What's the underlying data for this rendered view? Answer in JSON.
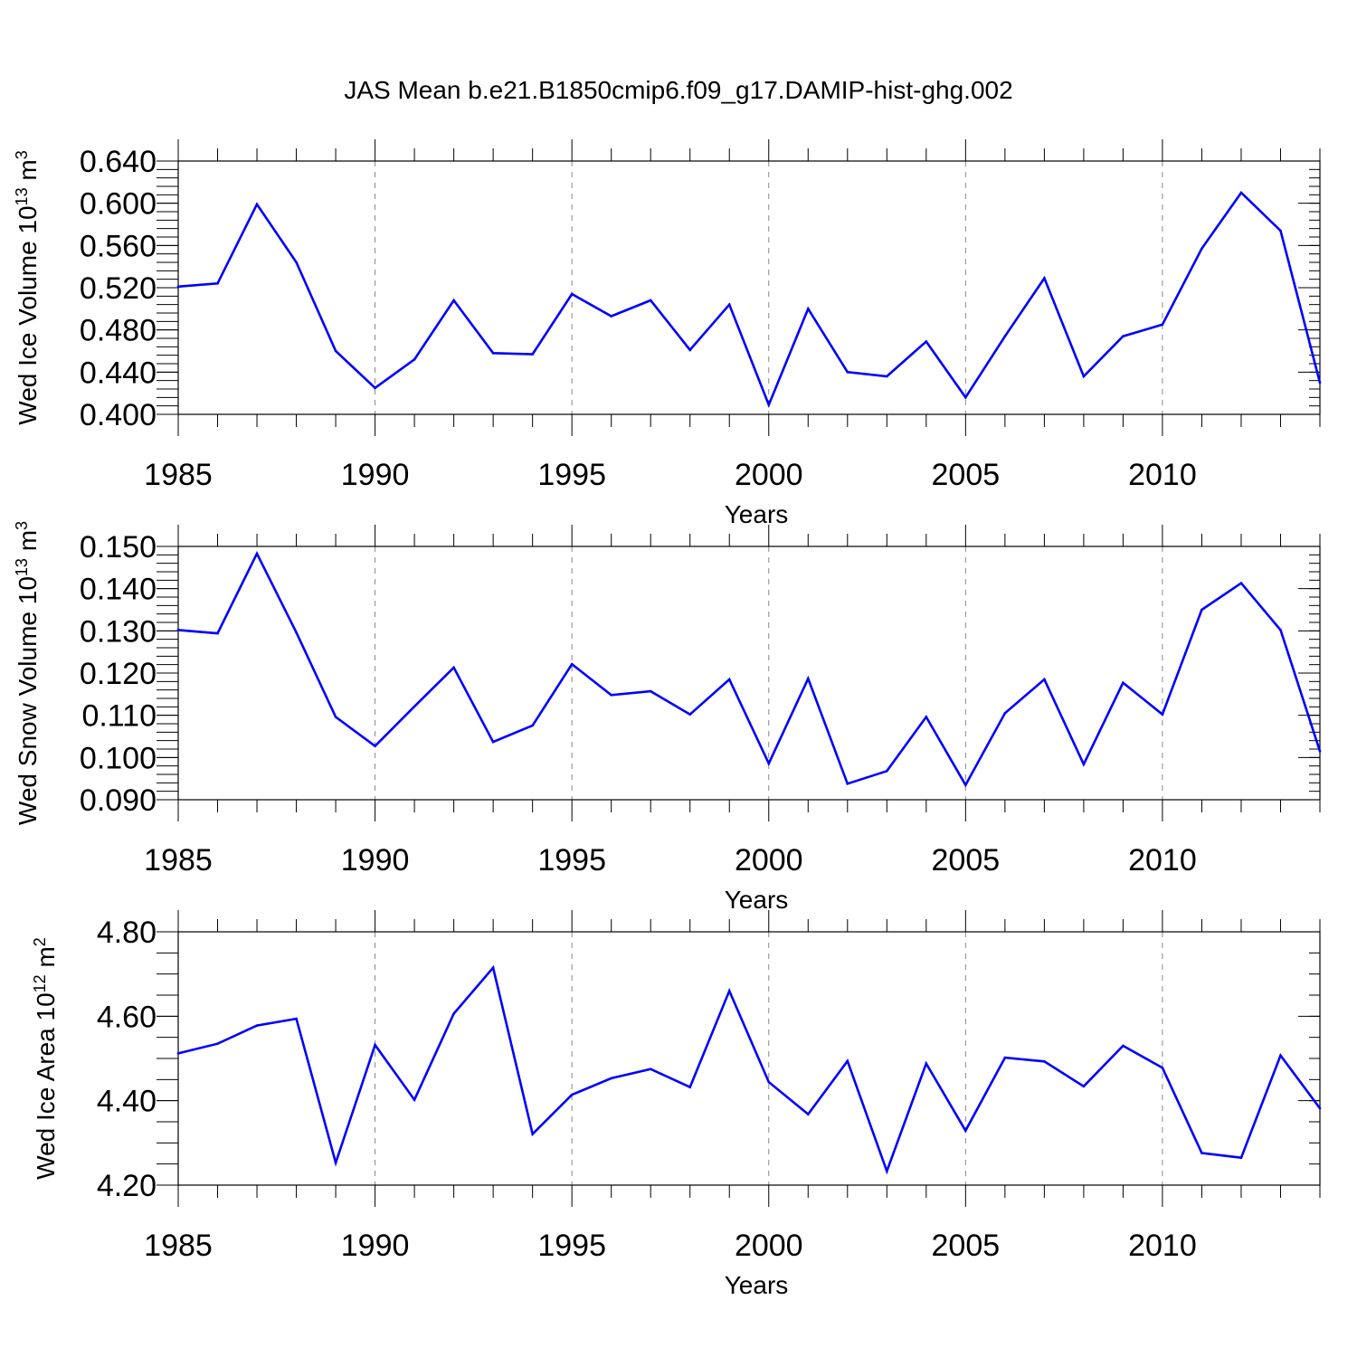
{
  "figure": {
    "title": "JAS Mean b.e21.B1850cmip6.f09_g17.DAMIP-hist-ghg.002"
  },
  "chart_data": [
    {
      "type": "line",
      "ylabel_main": "Wed Ice Volume 10",
      "ylabel_exp": "13",
      "ylabel_unit": " m",
      "ylabel_unit_exp": "3",
      "xlabel": "Years",
      "xlim": [
        1985,
        2014
      ],
      "ylim": [
        0.4,
        0.64
      ],
      "ytick_values": [
        0.4,
        0.44,
        0.48,
        0.52,
        0.56,
        0.6,
        0.64
      ],
      "ytick_labels": [
        "0.400",
        "0.440",
        "0.480",
        "0.520",
        "0.560",
        "0.600",
        "0.640"
      ],
      "ymajor_step": 0.04,
      "yminor_step": 0.008,
      "xtick_values": [
        1985,
        1990,
        1995,
        2000,
        2005,
        2010
      ],
      "xtick_labels": [
        "1985",
        "1990",
        "1995",
        "2000",
        "2005",
        "2010"
      ],
      "grid": "vertical dashed at major years",
      "color": "#0000ff",
      "x": [
        1985,
        1986,
        1987,
        1988,
        1989,
        1990,
        1991,
        1992,
        1993,
        1994,
        1995,
        1996,
        1997,
        1998,
        1999,
        2000,
        2001,
        2002,
        2003,
        2004,
        2005,
        2006,
        2007,
        2008,
        2009,
        2010,
        2011,
        2012,
        2013,
        2014
      ],
      "y": [
        0.521,
        0.524,
        0.599,
        0.544,
        0.46,
        0.425,
        0.452,
        0.508,
        0.458,
        0.457,
        0.514,
        0.493,
        0.508,
        0.461,
        0.504,
        0.409,
        0.5,
        0.44,
        0.436,
        0.469,
        0.416,
        0.474,
        0.529,
        0.436,
        0.474,
        0.485,
        0.557,
        0.61,
        0.574,
        0.43
      ]
    },
    {
      "type": "line",
      "ylabel_main": "Wed Snow Volume 10",
      "ylabel_exp": "13",
      "ylabel_unit": " m",
      "ylabel_unit_exp": "3",
      "xlabel": "Years",
      "xlim": [
        1985,
        2014
      ],
      "ylim": [
        0.09,
        0.15
      ],
      "ytick_values": [
        0.09,
        0.1,
        0.11,
        0.12,
        0.13,
        0.14,
        0.15
      ],
      "ytick_labels": [
        "0.090",
        "0.100",
        "0.110",
        "0.120",
        "0.130",
        "0.140",
        "0.150"
      ],
      "ymajor_step": 0.01,
      "yminor_step": 0.002,
      "xtick_values": [
        1985,
        1990,
        1995,
        2000,
        2005,
        2010
      ],
      "xtick_labels": [
        "1985",
        "1990",
        "1995",
        "2000",
        "2005",
        "2010"
      ],
      "grid": "vertical dashed at major years",
      "color": "#0000ff",
      "x": [
        1985,
        1986,
        1987,
        1988,
        1989,
        1990,
        1991,
        1992,
        1993,
        1994,
        1995,
        1996,
        1997,
        1998,
        1999,
        2000,
        2001,
        2002,
        2003,
        2004,
        2005,
        2006,
        2007,
        2008,
        2009,
        2010,
        2011,
        2012,
        2013,
        2014
      ],
      "y": [
        0.1302,
        0.1294,
        0.1483,
        0.1296,
        0.1096,
        0.1027,
        0.1121,
        0.1213,
        0.1037,
        0.1076,
        0.1221,
        0.1148,
        0.1157,
        0.1102,
        0.1185,
        0.0986,
        0.1187,
        0.0938,
        0.0968,
        0.1096,
        0.0935,
        0.1105,
        0.1185,
        0.0984,
        0.1177,
        0.1102,
        0.135,
        0.1413,
        0.1302,
        0.1015
      ]
    },
    {
      "type": "line",
      "ylabel_main": "Wed Ice Area 10",
      "ylabel_exp": "12",
      "ylabel_unit": " m",
      "ylabel_unit_exp": "2",
      "xlabel": "Years",
      "xlim": [
        1985,
        2014
      ],
      "ylim": [
        4.2,
        4.8
      ],
      "ytick_values": [
        4.2,
        4.4,
        4.6,
        4.8
      ],
      "ytick_labels": [
        "4.20",
        "4.40",
        "4.60",
        "4.80"
      ],
      "ymajor_step": 0.2,
      "yminor_step": 0.05,
      "xtick_values": [
        1985,
        1990,
        1995,
        2000,
        2005,
        2010
      ],
      "xtick_labels": [
        "1985",
        "1990",
        "1995",
        "2000",
        "2005",
        "2010"
      ],
      "grid": "vertical dashed at major years",
      "color": "#0000ff",
      "x": [
        1985,
        1986,
        1987,
        1988,
        1989,
        1990,
        1991,
        1992,
        1993,
        1994,
        1995,
        1996,
        1997,
        1998,
        1999,
        2000,
        2001,
        2002,
        2003,
        2004,
        2005,
        2006,
        2007,
        2008,
        2009,
        2010,
        2011,
        2012,
        2013,
        2014
      ],
      "y": [
        4.512,
        4.535,
        4.578,
        4.594,
        4.253,
        4.532,
        4.402,
        4.606,
        4.715,
        4.321,
        4.414,
        4.453,
        4.475,
        4.432,
        4.66,
        4.444,
        4.368,
        4.494,
        4.233,
        4.488,
        4.329,
        4.502,
        4.493,
        4.434,
        4.53,
        4.478,
        4.276,
        4.265,
        4.507,
        4.382
      ]
    }
  ]
}
